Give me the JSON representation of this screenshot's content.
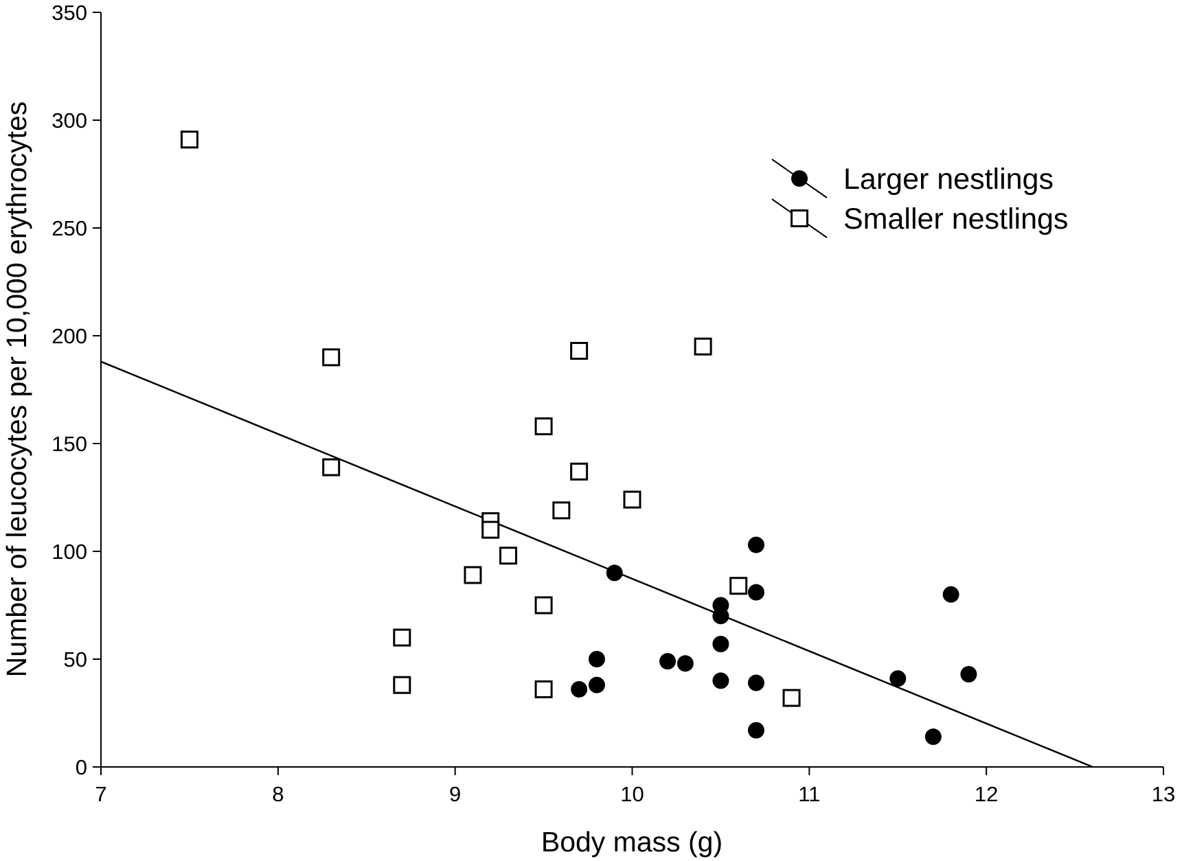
{
  "chart_data": {
    "type": "scatter",
    "xlabel": "Body mass (g)",
    "ylabel": "Number of leucocytes per 10,000 erythrocytes",
    "xlim": [
      7,
      13
    ],
    "ylim": [
      0,
      350
    ],
    "xticks": [
      7,
      8,
      9,
      10,
      11,
      12,
      13
    ],
    "yticks": [
      0,
      50,
      100,
      150,
      200,
      250,
      300,
      350
    ],
    "grid": false,
    "legend_position": "top-right",
    "series": [
      {
        "name": "Larger nestlings",
        "marker": "filled-circle",
        "color": "#000000",
        "points": [
          [
            9.7,
            36
          ],
          [
            9.8,
            38
          ],
          [
            9.8,
            50
          ],
          [
            9.9,
            90
          ],
          [
            10.2,
            49
          ],
          [
            10.3,
            48
          ],
          [
            10.5,
            40
          ],
          [
            10.5,
            57
          ],
          [
            10.5,
            70
          ],
          [
            10.5,
            75
          ],
          [
            10.7,
            17
          ],
          [
            10.7,
            39
          ],
          [
            10.7,
            81
          ],
          [
            10.7,
            103
          ],
          [
            11.5,
            41
          ],
          [
            11.7,
            14
          ],
          [
            11.8,
            80
          ],
          [
            11.9,
            43
          ]
        ]
      },
      {
        "name": "Smaller nestlings",
        "marker": "open-square",
        "color": "#000000",
        "points": [
          [
            7.5,
            291
          ],
          [
            8.3,
            190
          ],
          [
            8.3,
            139
          ],
          [
            8.7,
            60
          ],
          [
            8.7,
            38
          ],
          [
            9.1,
            89
          ],
          [
            9.2,
            114
          ],
          [
            9.2,
            110
          ],
          [
            9.3,
            98
          ],
          [
            9.5,
            158
          ],
          [
            9.5,
            75
          ],
          [
            9.5,
            36
          ],
          [
            9.6,
            119
          ],
          [
            9.7,
            193
          ],
          [
            9.7,
            137
          ],
          [
            10.0,
            124
          ],
          [
            10.4,
            195
          ],
          [
            10.6,
            84
          ],
          [
            10.9,
            32
          ]
        ]
      }
    ],
    "trend_line": {
      "type": "linear",
      "points": [
        [
          7.0,
          188
        ],
        [
          12.6,
          0
        ]
      ]
    }
  }
}
